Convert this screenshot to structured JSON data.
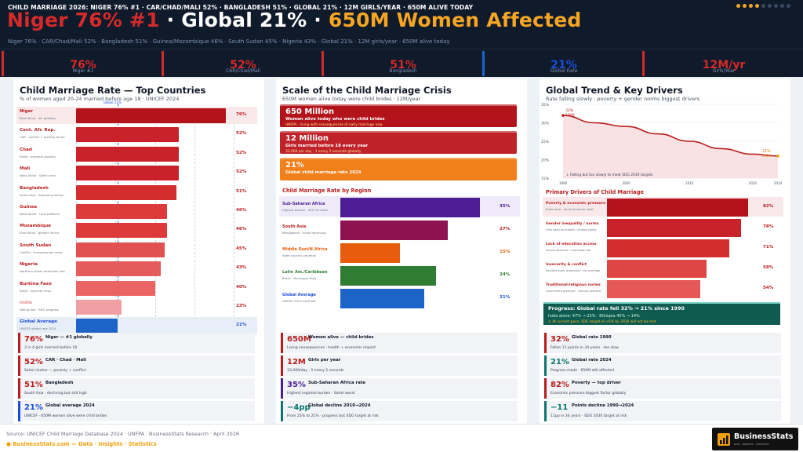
{
  "header": {
    "ticker": "CHILD MARRIAGE 2026: NIGER 76% #1 · CAR/CHAD/MALI 52% · BANGLADESH 51% · GLOBAL 21% · 12M GIRLS/YEAR · 650M ALIVE TODAY",
    "headline_red": "Niger 76% #1",
    "headline_sep1": " · ",
    "headline_white": "Global 21%",
    "headline_sep2": " · ",
    "headline_orange": "650M Women Affected",
    "subline": "Niger 76% · CAR/Chad/Mali 52% · Bangladesh 51% · Guinea/Mozambique 46% · South Sudan 45% · Nigeria 43% · Global 21% · 12M girls/year · 650M alive today",
    "dot_colors": [
      "#f5a524",
      "#f5a524",
      "#f5a524",
      "#f5a524",
      "#3a4760",
      "#3a4760",
      "#3a4760",
      "#3a4760",
      "#3a4760"
    ]
  },
  "kpis": [
    {
      "value": "76%",
      "label": "Niger #1",
      "color": "#d42a2a"
    },
    {
      "value": "52%",
      "label": "CAR/Chad/Mali",
      "color": "#d42a2a"
    },
    {
      "value": "51%",
      "label": "Bangladesh",
      "color": "#d42a2a"
    },
    {
      "value": "21%",
      "label": "Global Rate",
      "color": "#1d4ed8"
    },
    {
      "value": "12M/yr",
      "label": "Girls/Year",
      "color": "#d42a2a"
    }
  ],
  "left": {
    "title": "Child Marriage Rate — Top Countries",
    "subtitle": "% of women aged 20-24 married before age 18 · UNICEF 2024",
    "ref_label": "Global 21%",
    "rows": [
      {
        "name": "Niger",
        "note": "Best Africa · #1 globally",
        "value": 76,
        "label": "76%",
        "color": "#b3141c"
      },
      {
        "name": "Cent. Afr. Rep.",
        "note": "CAR · conflict + poverty driver",
        "value": 52,
        "label": "52%",
        "color": "#c9222a"
      },
      {
        "name": "Chad",
        "note": "Sahel · extreme poverty",
        "value": 52,
        "label": "52%",
        "color": "#c9222a"
      },
      {
        "name": "Mali",
        "note": "West Africa · Sahel crisis",
        "value": 52,
        "label": "52%",
        "color": "#c9222a"
      },
      {
        "name": "Bangladesh",
        "note": "South Asia · improving slowly",
        "value": 51,
        "label": "51%",
        "color": "#d42d2d"
      },
      {
        "name": "Guinea",
        "note": "West Africa · rural patterns",
        "value": 46,
        "label": "46%",
        "color": "#dd3b3b"
      },
      {
        "name": "Mozambique",
        "note": "East Africa · gender norms",
        "value": 46,
        "label": "46%",
        "color": "#dd3b3b"
      },
      {
        "name": "South Sudan",
        "note": "Conflict · humanitarian crisis",
        "value": 45,
        "label": "45%",
        "color": "#e25151"
      },
      {
        "name": "Nigeria",
        "note": "Northern states dominate rate",
        "value": 43,
        "label": "43%",
        "color": "#e65b5b"
      },
      {
        "name": "Burkina Faso",
        "note": "Sahel · security crisis",
        "value": 40,
        "label": "40%",
        "color": "#ea6464"
      },
      {
        "name": "India",
        "note": "Falling fast · SDG progress",
        "value": 23,
        "label": "23%",
        "color": "#f0a0a4"
      },
      {
        "name": "Global Average",
        "note": "UNICEF global rate 2024",
        "value": 21,
        "label": "21%",
        "color": "#1d64c8"
      }
    ],
    "ticks": [
      "0%",
      "20%",
      "40%",
      "60%",
      "80%"
    ]
  },
  "middle": {
    "title": "Scale of the Child Marriage Crisis",
    "subtitle": "650M women alive today were child brides · 12M/year",
    "boxes": [
      {
        "value": "650 Million",
        "label": "Women alive today who were child brides",
        "note": "UNFPA · living with consequences of early marriage now",
        "color": "#b3141c"
      },
      {
        "value": "12 Million",
        "label": "Girls married before 18 every year",
        "note": "33,000 per day · 1 every 2 seconds globally",
        "color": "#c0222a"
      },
      {
        "value": "21%",
        "label": "Global child marriage rate 2024",
        "note": "",
        "color": "#f17f1a"
      }
    ],
    "region_title": "Child Marriage Rate by Region",
    "regions": [
      {
        "name": "Sub-Saharan Africa",
        "note": "Highest burden · 40% of cases",
        "value": 35,
        "label": "35%",
        "color": "#4c1d95",
        "text": "#4c1d95"
      },
      {
        "name": "South Asia",
        "note": "Bangladesh · India improving",
        "value": 27,
        "label": "27%",
        "color": "#8e1150",
        "text": "#b91c1c"
      },
      {
        "name": "Middle East/N.Africa",
        "note": "Wide country variation",
        "value": 15,
        "label": "15%",
        "color": "#e85d0c",
        "text": "#e85d0c"
      },
      {
        "name": "Latin Am./Caribbean",
        "note": "Brazil · Nicaragua high",
        "value": 24,
        "label": "24%",
        "color": "#2e7d32",
        "text": "#2e7d32"
      },
      {
        "name": "Global Average",
        "note": "UNICEF 2024 estimate",
        "value": 21,
        "label": "21%",
        "color": "#1d64c8",
        "text": "#1d4ed8"
      }
    ]
  },
  "right": {
    "title": "Global Trend & Key Drivers",
    "subtitle": "Rate falling slowly · poverty + gender norms biggest drivers",
    "trend": {
      "start_label": "32%",
      "start_year_label": "1990",
      "end_label": "21%",
      "end_year_label": "2024",
      "note": "↓ Falling but too slowly to meet SDG 2030 targets",
      "yticks": [
        "35%",
        "30%",
        "25%",
        "20%",
        "15%"
      ],
      "xticks": [
        "1990",
        "2000",
        "2010",
        "2020",
        "2024"
      ]
    },
    "drivers_title": "Primary Drivers of Child Marriage",
    "drivers": [
      {
        "name": "Poverty & economic pressure",
        "note": "Bride price · family financial relief",
        "value": 82,
        "label": "82%",
        "color": "#b3141c"
      },
      {
        "name": "Gender inequality / norms",
        "note": "Girls seen as burden · limited rights",
        "value": 78,
        "label": "78%",
        "color": "#c9222a"
      },
      {
        "name": "Lack of education access",
        "note": "School absence = marriage risk",
        "value": 71,
        "label": "71%",
        "color": "#d42d2d"
      },
      {
        "name": "Insecurity & conflict",
        "note": "Families seek 'protection' via marriage",
        "value": 58,
        "label": "58%",
        "color": "#e04545"
      },
      {
        "name": "Traditional/religious norms",
        "note": "Community pressure · cultural practice",
        "value": 54,
        "label": "54%",
        "color": "#e65858"
      }
    ],
    "progress": {
      "title": "Progress: Global rate fell 32% → 21% since 1990",
      "line": "India alone: 47% → 23% · Ethiopia 40% → 14%",
      "warning": "⚠ At current pace, SDG target of <5% by 2030 will not be met"
    }
  },
  "cards": {
    "left": [
      {
        "value": "76%",
        "title": "Niger — #1 globally",
        "desc": "3 in 4 girls married before 18",
        "color": "#b91c1c"
      },
      {
        "value": "52%",
        "title": "CAR · Chad · Mali",
        "desc": "Sahel cluster — poverty + conflict",
        "color": "#b91c1c"
      },
      {
        "value": "51%",
        "title": "Bangladesh",
        "desc": "South Asia · declining but still high",
        "color": "#b91c1c"
      },
      {
        "value": "21%",
        "title": "Global average 2024",
        "desc": "UNICEF · 650M women alive were child brides",
        "color": "#1d4ed8"
      }
    ],
    "middle": [
      {
        "value": "650M",
        "title": "Women alive — child brides",
        "desc": "Living consequences · health + economic impact",
        "color": "#b91c1c"
      },
      {
        "value": "12M",
        "title": "Girls per year",
        "desc": "33,000/day · 1 every 2 seconds",
        "color": "#b91c1c"
      },
      {
        "value": "35%",
        "title": "Sub-Saharan Africa rate",
        "desc": "Highest regional burden · Sahel worst",
        "color": "#4c1d95"
      },
      {
        "value": "−4pp",
        "title": "Global decline 2010→2024",
        "desc": "From 25% to 21% · progress but SDG target at risk",
        "color": "#0f766e"
      }
    ],
    "right": [
      {
        "value": "32%",
        "title": "Global rate 1990",
        "desc": "Fallen 11 points in 34 years · too slow",
        "color": "#b91c1c"
      },
      {
        "value": "21%",
        "title": "Global rate 2024",
        "desc": "Progress made · 650M still affected",
        "color": "#0f766e"
      },
      {
        "value": "82%",
        "title": "Poverty — top driver",
        "desc": "Economic pressure biggest factor globally",
        "color": "#b91c1c"
      },
      {
        "value": "−11",
        "title": "Points decline 1990→2024",
        "desc": "11pp in 34 years · SDG 2030 target at risk",
        "color": "#0f766e"
      }
    ]
  },
  "footer": {
    "source": "Source: UNICEF Child Marriage Database 2024 · UNFPA · BusinessStats Research · April 2026",
    "site": "BusinessStats.com — Data · Insights · Statistics",
    "logo": "BusinessStats",
    "logo_tag": "DATA · INSIGHTS · STATISTICS"
  },
  "chart_data": [
    {
      "type": "bar",
      "title": "Child Marriage Rate — Top Countries",
      "subtitle": "% of women aged 20-24 married before age 18 · UNICEF 2024",
      "orientation": "horizontal",
      "categories": [
        "Niger",
        "Cent. Afr. Rep.",
        "Chad",
        "Mali",
        "Bangladesh",
        "Guinea",
        "Mozambique",
        "South Sudan",
        "Nigeria",
        "Burkina Faso",
        "India",
        "Global Average"
      ],
      "values": [
        76,
        52,
        52,
        52,
        51,
        46,
        46,
        45,
        43,
        40,
        23,
        21
      ],
      "xlim": [
        0,
        80
      ],
      "reference_line": {
        "value": 21,
        "label": "Global 21%"
      },
      "grid": true
    },
    {
      "type": "bar",
      "title": "Child Marriage Rate by Region",
      "orientation": "horizontal",
      "categories": [
        "Sub-Saharan Africa",
        "South Asia",
        "Middle East/N.Africa",
        "Latin Am./Caribbean",
        "Global Average"
      ],
      "values": [
        35,
        27,
        15,
        24,
        21
      ]
    },
    {
      "type": "area",
      "title": "Global Trend & Key Drivers",
      "x": [
        1990,
        1995,
        2000,
        2005,
        2010,
        2015,
        2020,
        2024
      ],
      "y": [
        32,
        30,
        29,
        27,
        25,
        23,
        21.5,
        21
      ],
      "ylim": [
        15,
        35
      ],
      "xlim": [
        1990,
        2024
      ]
    },
    {
      "type": "bar",
      "title": "Primary Drivers of Child Marriage",
      "orientation": "horizontal",
      "categories": [
        "Poverty & economic pressure",
        "Gender inequality / norms",
        "Lack of education access",
        "Insecurity & conflict",
        "Traditional/religious norms"
      ],
      "values": [
        82,
        78,
        71,
        58,
        54
      ]
    }
  ]
}
